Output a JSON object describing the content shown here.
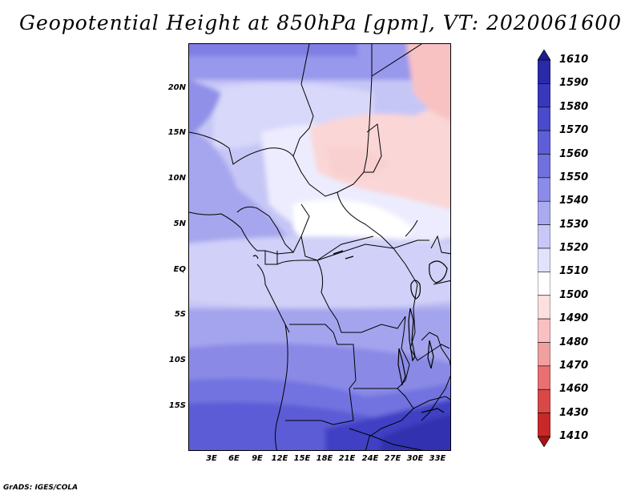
{
  "title": "Geopotential Height at 850hPa [gpm], VT: 2020061600",
  "footer": "GrADS: IGES/COLA",
  "map": {
    "lat_labels": [
      "20N",
      "15N",
      "10N",
      "5N",
      "EQ",
      "5S",
      "10S",
      "15S"
    ],
    "lon_labels": [
      "3E",
      "6E",
      "9E",
      "12E",
      "15E",
      "18E",
      "21E",
      "24E",
      "27E",
      "30E",
      "33E"
    ]
  },
  "colorbar": {
    "labels": [
      "1610",
      "1590",
      "1580",
      "1570",
      "1560",
      "1550",
      "1540",
      "1530",
      "1520",
      "1510",
      "1500",
      "1490",
      "1480",
      "1470",
      "1460",
      "1430",
      "1410"
    ],
    "colors": [
      "#1e1e8c",
      "#2a2aa8",
      "#3838bc",
      "#4a4acc",
      "#5e5ed8",
      "#7070e0",
      "#8c8ce8",
      "#aaaaf0",
      "#c8c8f8",
      "#e2e2fc",
      "#ffffff",
      "#fce0e0",
      "#f8c0c0",
      "#f0a0a0",
      "#e87070",
      "#d84848",
      "#c82828",
      "#a81414"
    ]
  }
}
